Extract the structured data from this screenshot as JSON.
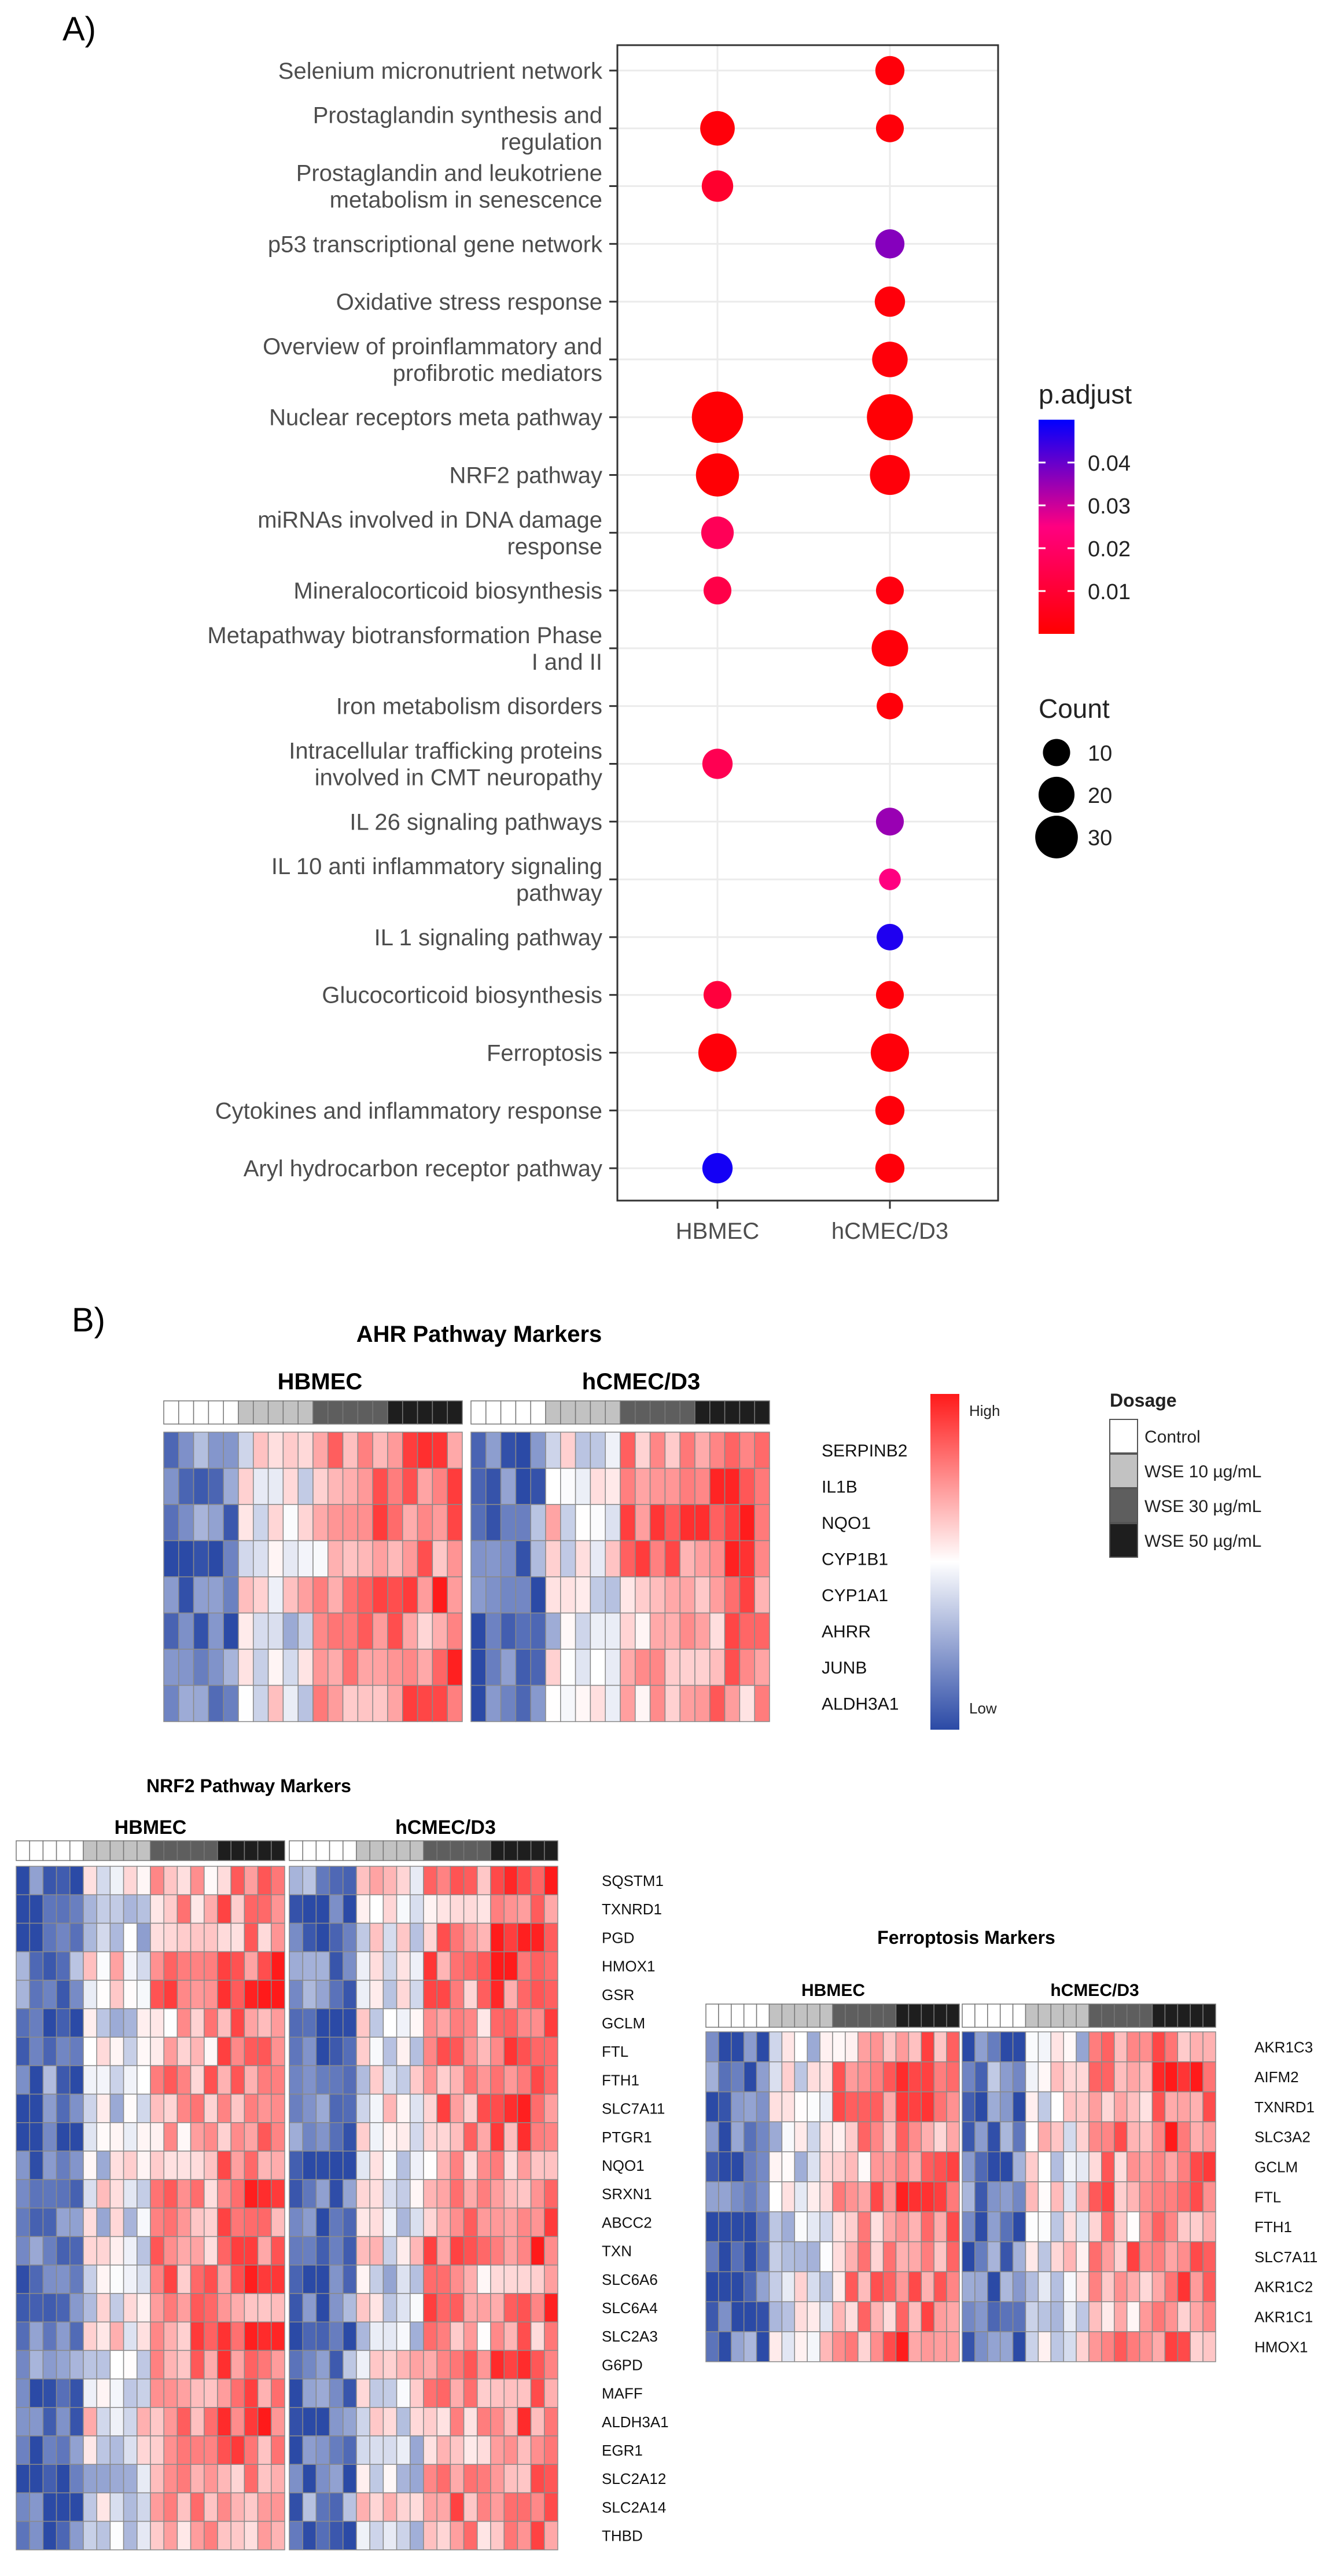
{
  "panel_a": {
    "label": "A)",
    "chart_data": {
      "type": "scatter",
      "title": "",
      "xlabel": "",
      "ylabel": "",
      "x_categories": [
        "HBMEC",
        "hCMEC/D3"
      ],
      "y_categories": [
        [
          "Selenium micronutrient network"
        ],
        [
          "Prostaglandin synthesis and",
          "regulation"
        ],
        [
          "Prostaglandin and leukotriene",
          "metabolism in senescence"
        ],
        [
          "p53 transcriptional gene network"
        ],
        [
          "Oxidative stress response"
        ],
        [
          "Overview of proinflammatory and",
          "profibrotic mediators"
        ],
        [
          "Nuclear receptors meta pathway"
        ],
        [
          "NRF2 pathway"
        ],
        [
          "miRNAs involved in DNA damage",
          "response"
        ],
        [
          "Mineralocorticoid biosynthesis"
        ],
        [
          "Metapathway biotransformation Phase",
          "I and II"
        ],
        [
          "Iron metabolism disorders"
        ],
        [
          "Intracellular trafficking proteins",
          "involved in CMT neuropathy"
        ],
        [
          "IL 26 signaling pathways"
        ],
        [
          "IL 10 anti inflammatory signaling",
          "pathway"
        ],
        [
          "IL 1 signaling pathway"
        ],
        [
          "Glucocorticoid biosynthesis"
        ],
        [
          "Ferroptosis"
        ],
        [
          "Cytokines and inflammatory response"
        ],
        [
          "Aryl hydrocarbon receptor pathway"
        ]
      ],
      "points": [
        {
          "x": 1,
          "y": 0,
          "count": 9,
          "p_adjust": 0.002
        },
        {
          "x": 0,
          "y": 1,
          "count": 14,
          "p_adjust": 0.002
        },
        {
          "x": 1,
          "y": 1,
          "count": 8,
          "p_adjust": 0.002
        },
        {
          "x": 0,
          "y": 2,
          "count": 11,
          "p_adjust": 0.009
        },
        {
          "x": 1,
          "y": 3,
          "count": 9,
          "p_adjust": 0.037
        },
        {
          "x": 1,
          "y": 4,
          "count": 10,
          "p_adjust": 0.002
        },
        {
          "x": 1,
          "y": 5,
          "count": 15,
          "p_adjust": 0.002
        },
        {
          "x": 0,
          "y": 6,
          "count": 36,
          "p_adjust": 0.001
        },
        {
          "x": 1,
          "y": 6,
          "count": 28,
          "p_adjust": 0.001
        },
        {
          "x": 0,
          "y": 7,
          "count": 24,
          "p_adjust": 0.001
        },
        {
          "x": 1,
          "y": 7,
          "count": 20,
          "p_adjust": 0.002
        },
        {
          "x": 0,
          "y": 8,
          "count": 12,
          "p_adjust": 0.017
        },
        {
          "x": 0,
          "y": 9,
          "count": 8,
          "p_adjust": 0.014
        },
        {
          "x": 1,
          "y": 9,
          "count": 8,
          "p_adjust": 0.003
        },
        {
          "x": 1,
          "y": 10,
          "count": 16,
          "p_adjust": 0.002
        },
        {
          "x": 1,
          "y": 11,
          "count": 7,
          "p_adjust": 0.002
        },
        {
          "x": 0,
          "y": 12,
          "count": 10,
          "p_adjust": 0.016
        },
        {
          "x": 1,
          "y": 13,
          "count": 8,
          "p_adjust": 0.035
        },
        {
          "x": 1,
          "y": 14,
          "count": 4,
          "p_adjust": 0.025
        },
        {
          "x": 1,
          "y": 15,
          "count": 7,
          "p_adjust": 0.047
        },
        {
          "x": 0,
          "y": 16,
          "count": 8,
          "p_adjust": 0.012
        },
        {
          "x": 1,
          "y": 16,
          "count": 8,
          "p_adjust": 0.002
        },
        {
          "x": 0,
          "y": 17,
          "count": 18,
          "p_adjust": 0.002
        },
        {
          "x": 1,
          "y": 17,
          "count": 18,
          "p_adjust": 0.002
        },
        {
          "x": 1,
          "y": 18,
          "count": 9,
          "p_adjust": 0.002
        },
        {
          "x": 0,
          "y": 19,
          "count": 10,
          "p_adjust": 0.048
        },
        {
          "x": 1,
          "y": 19,
          "count": 9,
          "p_adjust": 0.002
        }
      ],
      "color_legend": {
        "title": "p.adjust",
        "ticks": [
          0.04,
          0.03,
          0.02,
          0.01
        ],
        "tick_labels": [
          "0.04",
          "0.03",
          "0.02",
          "0.01"
        ],
        "range": [
          0.0,
          0.05
        ],
        "low_color": "#ff0000",
        "high_color": "#0000ff"
      },
      "size_legend": {
        "title": "Count",
        "values": [
          10,
          20,
          30
        ],
        "labels": [
          "10",
          "20",
          "30"
        ]
      },
      "grid": true,
      "legend_position": "right"
    }
  },
  "panel_b": {
    "label": "B)",
    "colors": {
      "low": "#2b4aa6",
      "mid": "#ffffff",
      "high": "#ff1a1a",
      "control": "#ffffff",
      "wse10": "#c2c2c2",
      "wse30": "#5e5e5e",
      "wse50": "#1e1e1e"
    },
    "dosage_legend": {
      "title": "Dosage",
      "items": [
        "Control",
        "WSE 10 µg/mL",
        "WSE 30 µg/mL",
        "WSE 50 µg/mL"
      ]
    },
    "colorbar": {
      "high_label": "High",
      "low_label": "Low"
    },
    "heatmaps": [
      {
        "title": "AHR Pathway Markers",
        "group_labels": [
          "HBMEC",
          "hCMEC/D3"
        ],
        "dosage_groups": [
          5,
          5,
          5,
          5
        ],
        "genes": [
          "SERPINB2",
          "IL1B",
          "NQO1",
          "CYP1B1",
          "CYP1A1",
          "AHRR",
          "JUNB",
          "ALDH3A1"
        ]
      },
      {
        "title": "NRF2 Pathway Markers",
        "group_labels": [
          "HBMEC",
          "hCMEC/D3"
        ],
        "dosage_groups": [
          5,
          5,
          5,
          5
        ],
        "genes": [
          "SQSTM1",
          "TXNRD1",
          "PGD",
          "HMOX1",
          "GSR",
          "GCLM",
          "FTL",
          "FTH1",
          "SLC7A11",
          "PTGR1",
          "NQO1",
          "SRXN1",
          "ABCC2",
          "TXN",
          "SLC6A6",
          "SLC6A4",
          "SLC2A3",
          "G6PD",
          "MAFF",
          "ALDH3A1",
          "EGR1",
          "SLC2A12",
          "SLC2A14",
          "THBD"
        ]
      },
      {
        "title": "Ferroptosis Markers",
        "group_labels": [
          "HBMEC",
          "hCMEC/D3"
        ],
        "dosage_groups": [
          5,
          5,
          5,
          5
        ],
        "genes": [
          "AKR1C3",
          "AIFM2",
          "TXNRD1",
          "SLC3A2",
          "GCLM",
          "FTL",
          "FTH1",
          "SLC7A11",
          "AKR1C2",
          "AKR1C1",
          "HMOX1"
        ]
      }
    ]
  }
}
